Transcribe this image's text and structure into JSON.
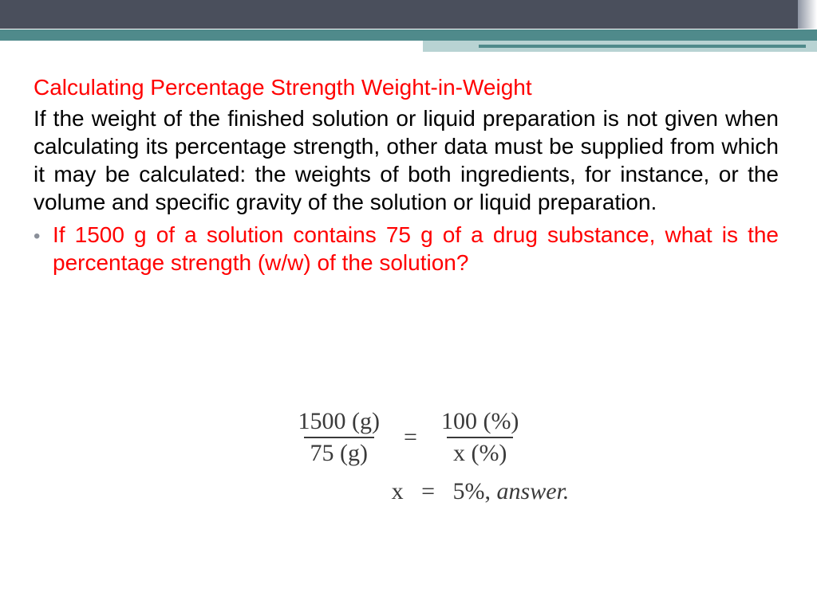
{
  "colors": {
    "dark_band": "#4a4f5c",
    "teal": "#4f8a8b",
    "teal_light": "#b8d3d3",
    "heading_red": "#ff0000",
    "body_black": "#000000",
    "bullet_gray": "#8a8f99",
    "formula_gray": "#3a3a3a"
  },
  "typography": {
    "body_family": "Arial",
    "body_size_pt": 21,
    "heading_size_pt": 21,
    "formula_family": "Times New Roman",
    "formula_size_pt": 22
  },
  "heading": "Calculating Percentage Strength Weight-in-Weight",
  "body": "If the weight of the finished solution or liquid preparation is not given when calculating its percentage strength, other data must be supplied from which it may be calculated: the weights of both ingredients, for instance, or the volume and specific gravity of the solution or liquid preparation.",
  "bullet": {
    "mark": "•",
    "text": "If 1500 g of a solution contains 75 g of a drug substance, what is the percentage strength (w/w) of the solution?"
  },
  "formula": {
    "left_num": "1500 (g)",
    "left_den": "75 (g)",
    "equals": "=",
    "right_num": "100 (%)",
    "right_den": "x (%)",
    "answer_prefix": "x",
    "answer_eq": "=",
    "answer_value": "5%, ",
    "answer_word": "answer."
  }
}
